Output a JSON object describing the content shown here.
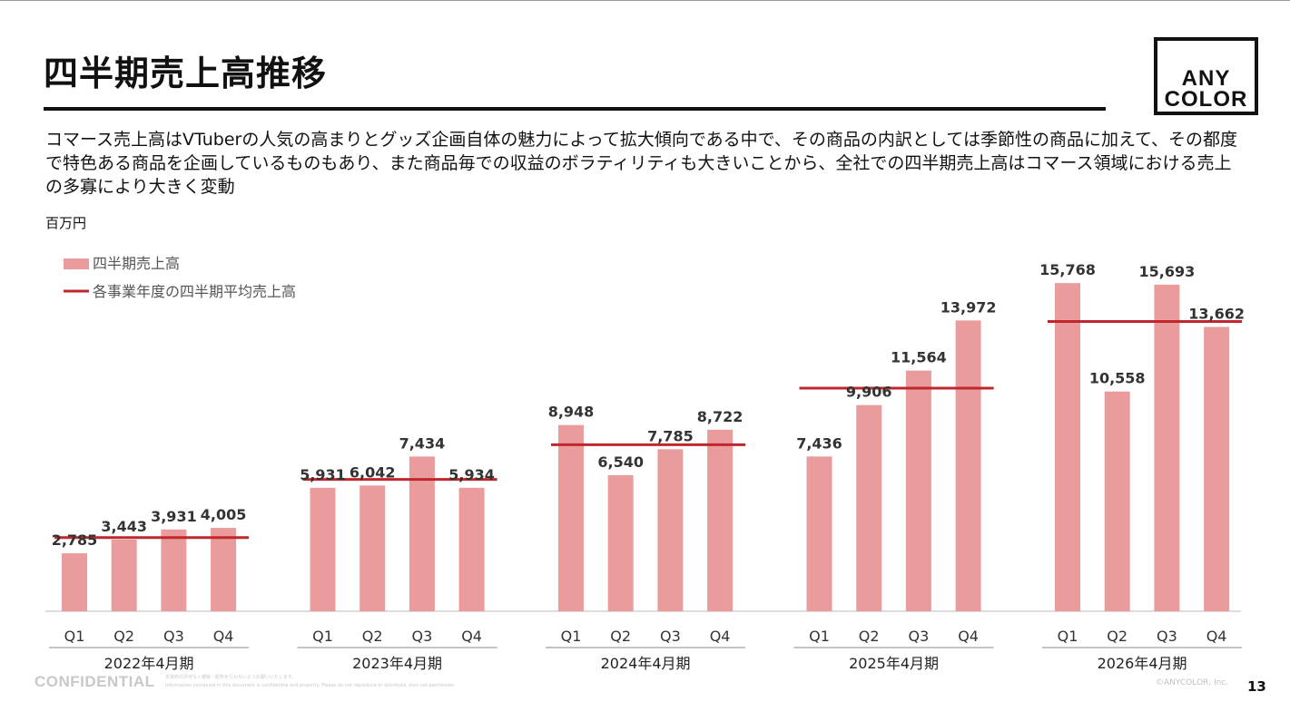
{
  "title": "四半期売上高推移",
  "logo": {
    "line1": "ANY",
    "line2": "COLOR"
  },
  "description": "コマース売上高はVTuberの人気の高まりとグッズ企画自体の魅力によって拡大傾向である中で、その商品の内訳としては季節性の商品に加えて、その都度で特色ある商品を企画しているものもあり、また商品毎での収益のボラティリティも大きいことから、全社での四半期売上高はコマース領域における売上の多寡により大きく変動",
  "unit_label": "百万円",
  "footer": {
    "confidential": "CONFIDENTIAL",
    "note_line1": "本資料の許可なく複製・配布を行わないようお願いいたします。",
    "note_line2": "Information contained in this document is confidential and property. Please do not reproduce or distribute, distr not permission.",
    "copyright": "©ANYCOLOR, Inc.",
    "page_number": "13"
  },
  "chart_data": {
    "type": "bar",
    "ylabel": "百万円",
    "ylim": [
      0,
      16500
    ],
    "grid": false,
    "legend_position": "top-left",
    "legend": [
      {
        "label": "四半期売上高",
        "kind": "bar",
        "color": "#ea9c9c"
      },
      {
        "label": "各事業年度の四半期平均売上高",
        "kind": "line",
        "color": "#c0272d"
      }
    ],
    "groups": [
      {
        "label": "2022年4月期",
        "quarters": [
          "Q1",
          "Q2",
          "Q3",
          "Q4"
        ],
        "values": [
          2785,
          3443,
          3931,
          4005
        ],
        "value_labels": [
          "2,785",
          "3,443",
          "3,931",
          "4,005"
        ],
        "average": 3541
      },
      {
        "label": "2023年4月期",
        "quarters": [
          "Q1",
          "Q2",
          "Q3",
          "Q4"
        ],
        "values": [
          5931,
          6042,
          7434,
          5934
        ],
        "value_labels": [
          "5,931",
          "6,042",
          "7,434",
          "5,934"
        ],
        "average": 6335
      },
      {
        "label": "2024年4月期",
        "quarters": [
          "Q1",
          "Q2",
          "Q3",
          "Q4"
        ],
        "values": [
          8948,
          6540,
          7785,
          8722
        ],
        "value_labels": [
          "8,948",
          "6,540",
          "7,785",
          "8,722"
        ],
        "average": 7999
      },
      {
        "label": "2025年4月期",
        "quarters": [
          "Q1",
          "Q2",
          "Q3",
          "Q4"
        ],
        "values": [
          7436,
          9906,
          11564,
          13972
        ],
        "value_labels": [
          "7,436",
          "9,906",
          "11,564",
          "13,972"
        ],
        "average": 10720
      },
      {
        "label": "2026年4月期",
        "quarters": [
          "Q1",
          "Q2",
          "Q3",
          "Q4"
        ],
        "values": [
          15768,
          10558,
          15693,
          13662
        ],
        "value_labels": [
          "15,768",
          "10,558",
          "15,693",
          "13,662"
        ],
        "average": 13920
      }
    ],
    "colors": {
      "bar": "#ea9c9c",
      "average_line": "#c0272d",
      "label_text": "#333333",
      "axis": "#bbbbbb"
    }
  }
}
